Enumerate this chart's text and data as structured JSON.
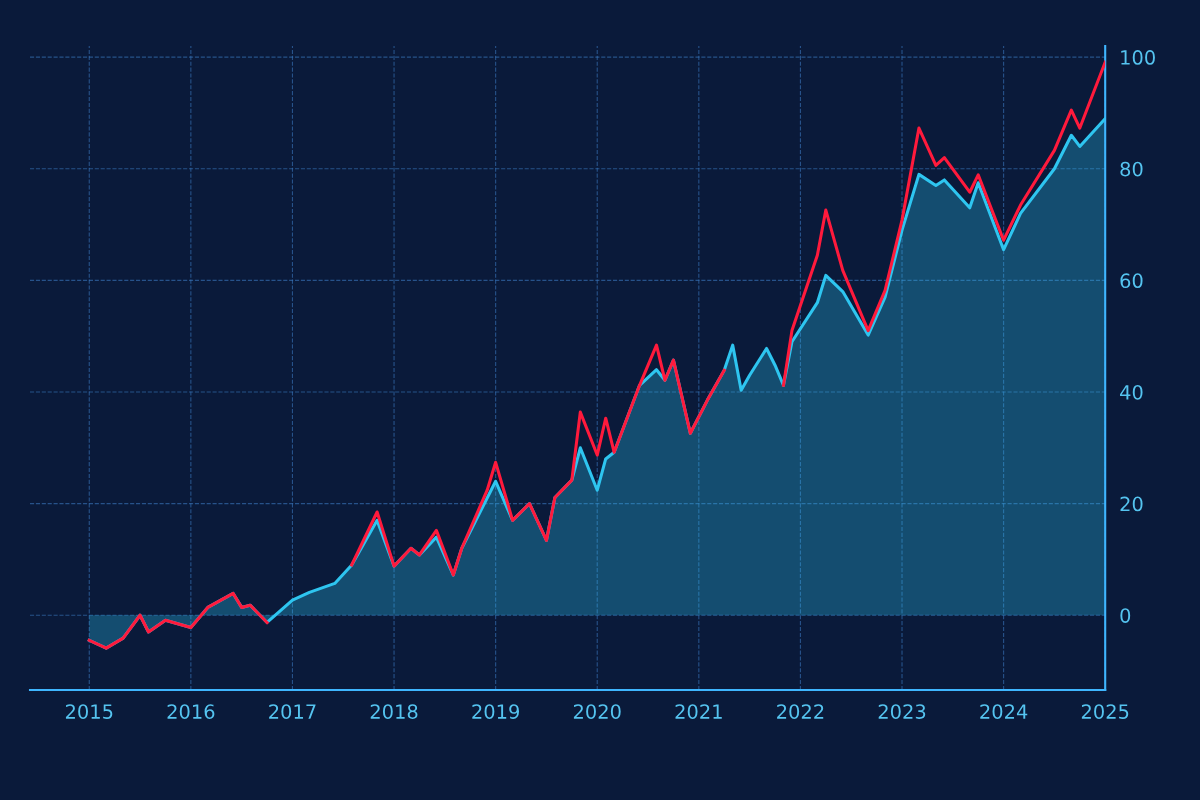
{
  "chart_data": {
    "type": "area",
    "x": [
      "2015-01",
      "2015-03",
      "2015-05",
      "2015-07",
      "2015-08",
      "2015-10",
      "2016-01",
      "2016-03",
      "2016-06",
      "2016-07",
      "2016-08",
      "2016-10",
      "2017-01",
      "2017-03",
      "2017-06",
      "2017-08",
      "2017-11",
      "2018-01",
      "2018-03",
      "2018-04",
      "2018-06",
      "2018-08",
      "2018-09",
      "2018-12",
      "2019-01",
      "2019-03",
      "2019-05",
      "2019-07",
      "2019-08",
      "2019-10",
      "2019-11",
      "2020-01",
      "2020-02",
      "2020-03",
      "2020-06",
      "2020-08",
      "2020-09",
      "2020-10",
      "2020-12",
      "2021-02",
      "2021-04",
      "2021-05",
      "2021-06",
      "2021-07",
      "2021-09",
      "2021-10",
      "2021-11",
      "2021-12",
      "2022-03",
      "2022-04",
      "2022-06",
      "2022-09",
      "2022-11",
      "2023-01",
      "2023-03",
      "2023-05",
      "2023-06",
      "2023-09",
      "2023-10",
      "2024-01",
      "2024-03",
      "2024-07",
      "2024-09",
      "2024-10",
      "2025-01"
    ],
    "series": [
      {
        "color": "#2ec5f0",
        "values": [
          -4.5,
          -5.9,
          -4.1,
          0,
          -3,
          -0.9,
          -2.2,
          1.4,
          3.9,
          1.4,
          1.8,
          -1.3,
          2.7,
          4.1,
          5.7,
          9,
          17,
          8.8,
          12,
          10.8,
          14,
          7.2,
          12,
          21,
          24,
          17,
          20,
          13.4,
          21.1,
          24.2,
          30,
          22.4,
          28,
          29.2,
          41.2,
          44,
          42.1,
          45.7,
          32.6,
          38.5,
          43.9,
          48.4,
          40.3,
          43,
          47.8,
          44.8,
          41.2,
          49,
          56,
          60.9,
          58,
          50.2,
          57,
          69,
          79,
          77,
          78,
          73,
          77.5,
          65.5,
          72,
          80,
          86,
          84,
          89
        ]
      },
      {
        "type": "line",
        "color": "#ff1a3c",
        "values": [
          -4.5,
          -5.9,
          -4.1,
          0,
          -3,
          -0.9,
          -2.2,
          1.4,
          3.9,
          1.4,
          1.8,
          -1.3,
          null,
          null,
          null,
          9,
          18.5,
          8.8,
          12,
          10.8,
          15.2,
          7.2,
          12,
          22.4,
          27.4,
          17,
          20,
          13.4,
          21.1,
          24.2,
          36.4,
          28.7,
          35.3,
          29.2,
          41.2,
          48.4,
          42.1,
          45.7,
          32.6,
          38.5,
          43.9,
          null,
          null,
          null,
          null,
          null,
          41.2,
          51,
          64.5,
          72.6,
          61.8,
          51,
          58.2,
          70.8,
          87.3,
          80.6,
          82,
          75.8,
          78.9,
          67.2,
          73.5,
          83.3,
          90.5,
          87.3,
          99.1
        ]
      }
    ],
    "xlim": [
      "2014-06",
      "2025-01"
    ],
    "xticks": [
      "2015",
      "2016",
      "2017",
      "2018",
      "2019",
      "2020",
      "2021",
      "2022",
      "2023",
      "2024",
      "2025"
    ],
    "ylim": [
      -13.4,
      102
    ],
    "yticks": [
      0,
      20,
      40,
      60,
      80,
      100
    ],
    "grid": true,
    "line_style": "solid",
    "marker": "none"
  }
}
